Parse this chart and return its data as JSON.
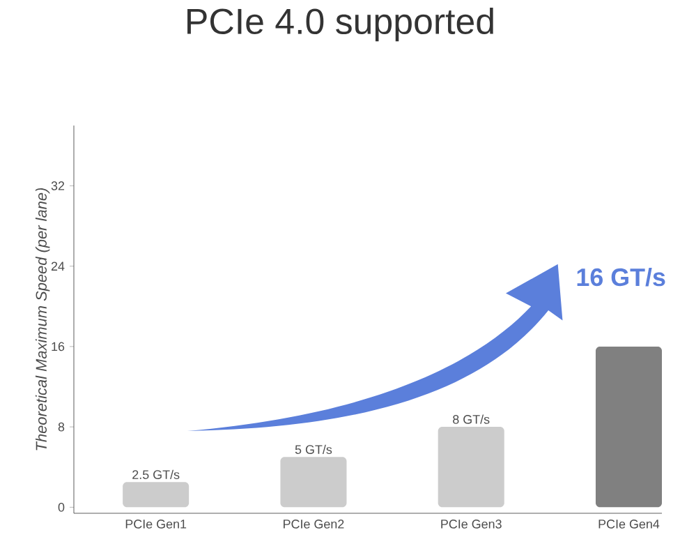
{
  "chart_data": {
    "type": "bar",
    "title": "PCIe 4.0 supported",
    "ylabel": "Theoretical Maximum Speed (per lane)",
    "categories": [
      "PCIe Gen1",
      "PCIe Gen2",
      "PCIe Gen3",
      "PCIe Gen4"
    ],
    "values": [
      2.5,
      5,
      8,
      16
    ],
    "colors": [
      "#cccccc",
      "#cccccc",
      "#cccccc",
      "#808080"
    ],
    "value_labels": [
      "2.5 GT/s",
      "5 GT/s",
      "8 GT/s",
      "16 GT/s"
    ],
    "ylim": [
      -0.6,
      38
    ],
    "yticks": [
      0,
      8,
      16,
      24,
      32
    ]
  }
}
